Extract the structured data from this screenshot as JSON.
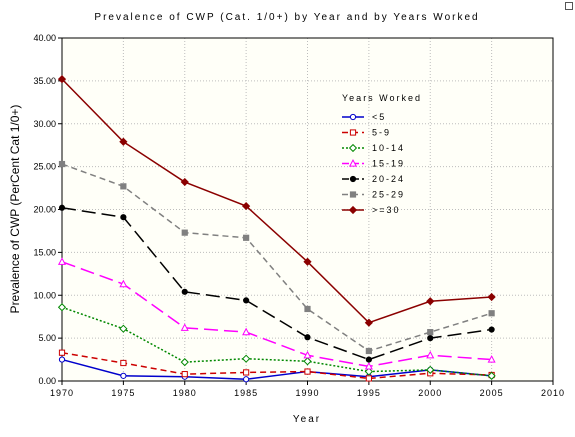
{
  "chart_data": {
    "type": "line",
    "title": "Prevalence of CWP (Cat. 1/0+) by Year and by Years Worked",
    "xlabel": "Year",
    "ylabel": "Prevalence of CWP (PerCent Cat 1/0+)",
    "xlim": [
      1970,
      2010
    ],
    "ylim": [
      0,
      40
    ],
    "x_ticks": [
      "1970",
      "1975",
      "1980",
      "1985",
      "1990",
      "1995",
      "2000",
      "2005",
      "2010"
    ],
    "y_ticks": [
      "0.00",
      "5.00",
      "10.00",
      "15.00",
      "20.00",
      "25.00",
      "30.00",
      "35.00",
      "40.00"
    ],
    "grid": true,
    "legend_title": "Years Worked",
    "legend_position": "right, upper-middle",
    "x": [
      1970,
      1975,
      1980,
      1985,
      1990,
      1995,
      2000,
      2005
    ],
    "series": [
      {
        "name": "<5",
        "values": [
          2.5,
          0.6,
          0.5,
          0.2,
          1.1,
          0.5,
          1.3,
          0.6
        ],
        "color": "#0000cc",
        "dash": "solid",
        "marker": "circle-open"
      },
      {
        "name": "5-9",
        "values": [
          3.3,
          2.1,
          0.8,
          1.0,
          1.1,
          0.3,
          0.9,
          0.7
        ],
        "color": "#cc0000",
        "dash": "dashed",
        "marker": "square-open"
      },
      {
        "name": "10-14",
        "values": [
          8.6,
          6.1,
          2.2,
          2.6,
          2.3,
          1.1,
          1.3,
          0.6
        ],
        "color": "#008800",
        "dash": "dotted",
        "marker": "diamond-open"
      },
      {
        "name": "15-19",
        "values": [
          13.9,
          11.3,
          6.2,
          5.7,
          3.0,
          1.7,
          3.0,
          2.5
        ],
        "color": "#ff00ff",
        "dash": "long-dash",
        "marker": "triangle-open"
      },
      {
        "name": "20-24",
        "values": [
          20.2,
          19.1,
          10.4,
          9.4,
          5.1,
          2.5,
          5.0,
          6.0
        ],
        "color": "#000000",
        "dash": "long-dash",
        "marker": "circle-filled"
      },
      {
        "name": "25-29",
        "values": [
          25.3,
          22.7,
          17.3,
          16.7,
          8.4,
          3.5,
          5.7,
          7.9
        ],
        "color": "#808080",
        "dash": "dashed",
        "marker": "square-filled"
      },
      {
        "name": ">=30",
        "values": [
          35.2,
          27.9,
          23.2,
          20.4,
          13.9,
          6.8,
          9.3,
          9.8
        ],
        "color": "#8b0000",
        "dash": "solid",
        "marker": "diamond-filled"
      }
    ]
  }
}
